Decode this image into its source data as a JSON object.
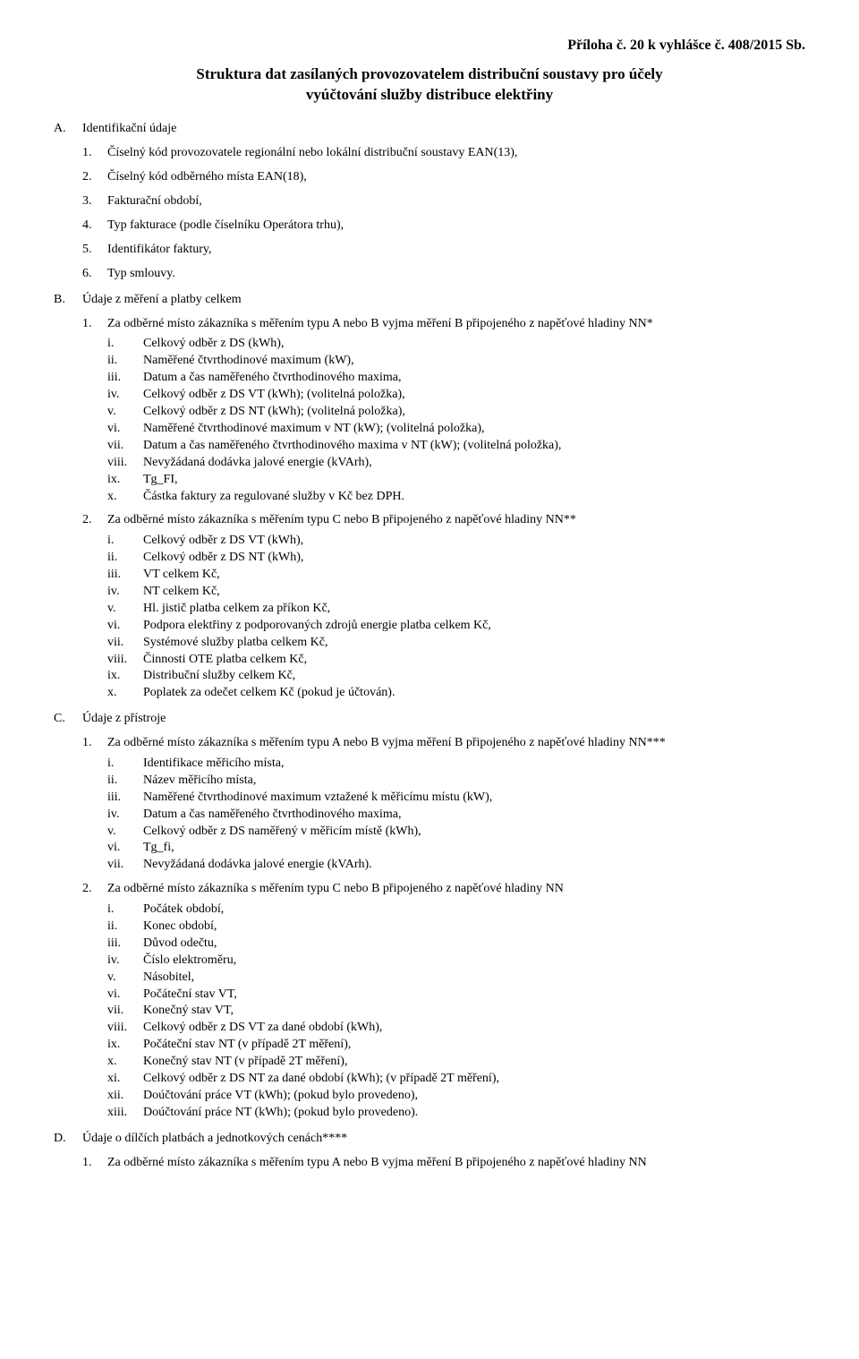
{
  "header_right": "Příloha č. 20 k vyhlášce č. 408/2015 Sb.",
  "title_line1": "Struktura dat zasílaných provozovatelem distribuční soustavy pro účely",
  "title_line2": "vyúčtování služby distribuce elektřiny",
  "sections": {
    "A": {
      "label": "A.",
      "title": "Identifikační údaje",
      "items": [
        "Číselný kód provozovatele regionální nebo lokální distribuční soustavy EAN(13),",
        "Číselný kód odběrného místa EAN(18),",
        "Fakturační období,",
        "Typ fakturace (podle číselníku Operátora trhu),",
        "Identifikátor faktury,",
        "Typ smlouvy."
      ]
    },
    "B": {
      "label": "B.",
      "title": "Údaje z měření a platby celkem",
      "sub": [
        {
          "num": "1.",
          "text": "Za odběrné místo zákazníka s měřením typu A nebo B vyjma měření B připojeného z napěťové hladiny NN*",
          "romans": [
            [
              "i.",
              "Celkový odběr z DS (kWh),"
            ],
            [
              "ii.",
              "Naměřené čtvrthodinové maximum (kW),"
            ],
            [
              "iii.",
              "Datum a čas naměřeného čtvrthodinového maxima,"
            ],
            [
              "iv.",
              "Celkový odběr z DS VT (kWh); (volitelná položka),"
            ],
            [
              "v.",
              "Celkový odběr z DS NT (kWh); (volitelná položka),"
            ],
            [
              "vi.",
              "Naměřené čtvrthodinové maximum v NT (kW); (volitelná položka),"
            ],
            [
              "vii.",
              "Datum a čas naměřeného čtvrthodinového maxima v NT (kW); (volitelná položka),"
            ],
            [
              "viii.",
              "Nevyžádaná dodávka jalové energie (kVArh),"
            ],
            [
              "ix.",
              "Tg_FI,"
            ],
            [
              "x.",
              "Částka faktury za regulované služby v Kč bez DPH."
            ]
          ]
        },
        {
          "num": "2.",
          "text": "Za odběrné místo zákazníka s měřením typu C nebo B připojeného z napěťové hladiny NN**",
          "romans": [
            [
              "i.",
              "Celkový odběr z DS VT (kWh),"
            ],
            [
              "ii.",
              "Celkový odběr z DS NT (kWh),"
            ],
            [
              "iii.",
              "VT celkem Kč,"
            ],
            [
              "iv.",
              "NT celkem Kč,"
            ],
            [
              "v.",
              "Hl. jistič platba celkem za příkon Kč,"
            ],
            [
              "vi.",
              "Podpora elektřiny z podporovaných zdrojů energie platba celkem Kč,"
            ],
            [
              "vii.",
              "Systémové služby platba celkem Kč,"
            ],
            [
              "viii.",
              "Činnosti OTE platba celkem Kč,"
            ],
            [
              "ix.",
              "Distribuční služby celkem Kč,"
            ],
            [
              "x.",
              "Poplatek za odečet celkem Kč (pokud je účtován)."
            ]
          ]
        }
      ]
    },
    "C": {
      "label": "C.",
      "title": "Údaje z přístroje",
      "sub": [
        {
          "num": "1.",
          "text": "Za odběrné místo zákazníka s měřením typu A nebo B vyjma měření B připojeného z napěťové hladiny NN***",
          "romans": [
            [
              "i.",
              "Identifikace měřicího místa,"
            ],
            [
              "ii.",
              "Název měřicího místa,"
            ],
            [
              "iii.",
              "Naměřené čtvrthodinové maximum vztažené k měřicímu místu (kW),"
            ],
            [
              "iv.",
              "Datum a čas naměřeného čtvrthodinového maxima,"
            ],
            [
              "v.",
              "Celkový odběr z DS naměřený v měřicím místě (kWh),"
            ],
            [
              "vi.",
              "Tg_fi,"
            ],
            [
              "vii.",
              "Nevyžádaná dodávka jalové energie (kVArh)."
            ]
          ]
        },
        {
          "num": "2.",
          "text": "Za odběrné místo zákazníka s měřením typu C nebo B připojeného z napěťové hladiny NN",
          "romans": [
            [
              "i.",
              "Počátek období,"
            ],
            [
              "ii.",
              "Konec období,"
            ],
            [
              "iii.",
              "Důvod odečtu,"
            ],
            [
              "iv.",
              "Číslo elektroměru,"
            ],
            [
              "v.",
              "Násobitel,"
            ],
            [
              "vi.",
              "Počáteční stav VT,"
            ],
            [
              "vii.",
              "Konečný stav VT,"
            ],
            [
              "viii.",
              "Celkový odběr z DS VT za dané období (kWh),"
            ],
            [
              "ix.",
              "Počáteční stav NT (v případě 2T měření),"
            ],
            [
              "x.",
              "Konečný stav NT (v případě 2T měření),"
            ],
            [
              "xi.",
              "Celkový odběr z DS NT za dané období (kWh); (v případě 2T měření),"
            ],
            [
              "xii.",
              "Doúčtování práce VT (kWh); (pokud bylo provedeno),"
            ],
            [
              "xiii.",
              "Doúčtování práce NT (kWh); (pokud bylo provedeno)."
            ]
          ]
        }
      ]
    },
    "D": {
      "label": "D.",
      "title": "Údaje o dílčích platbách a jednotkových cenách****",
      "sub": [
        {
          "num": "1.",
          "text": "Za odběrné místo zákazníka s měřením typu A nebo B vyjma měření B připojeného z napěťové hladiny NN"
        }
      ]
    }
  }
}
